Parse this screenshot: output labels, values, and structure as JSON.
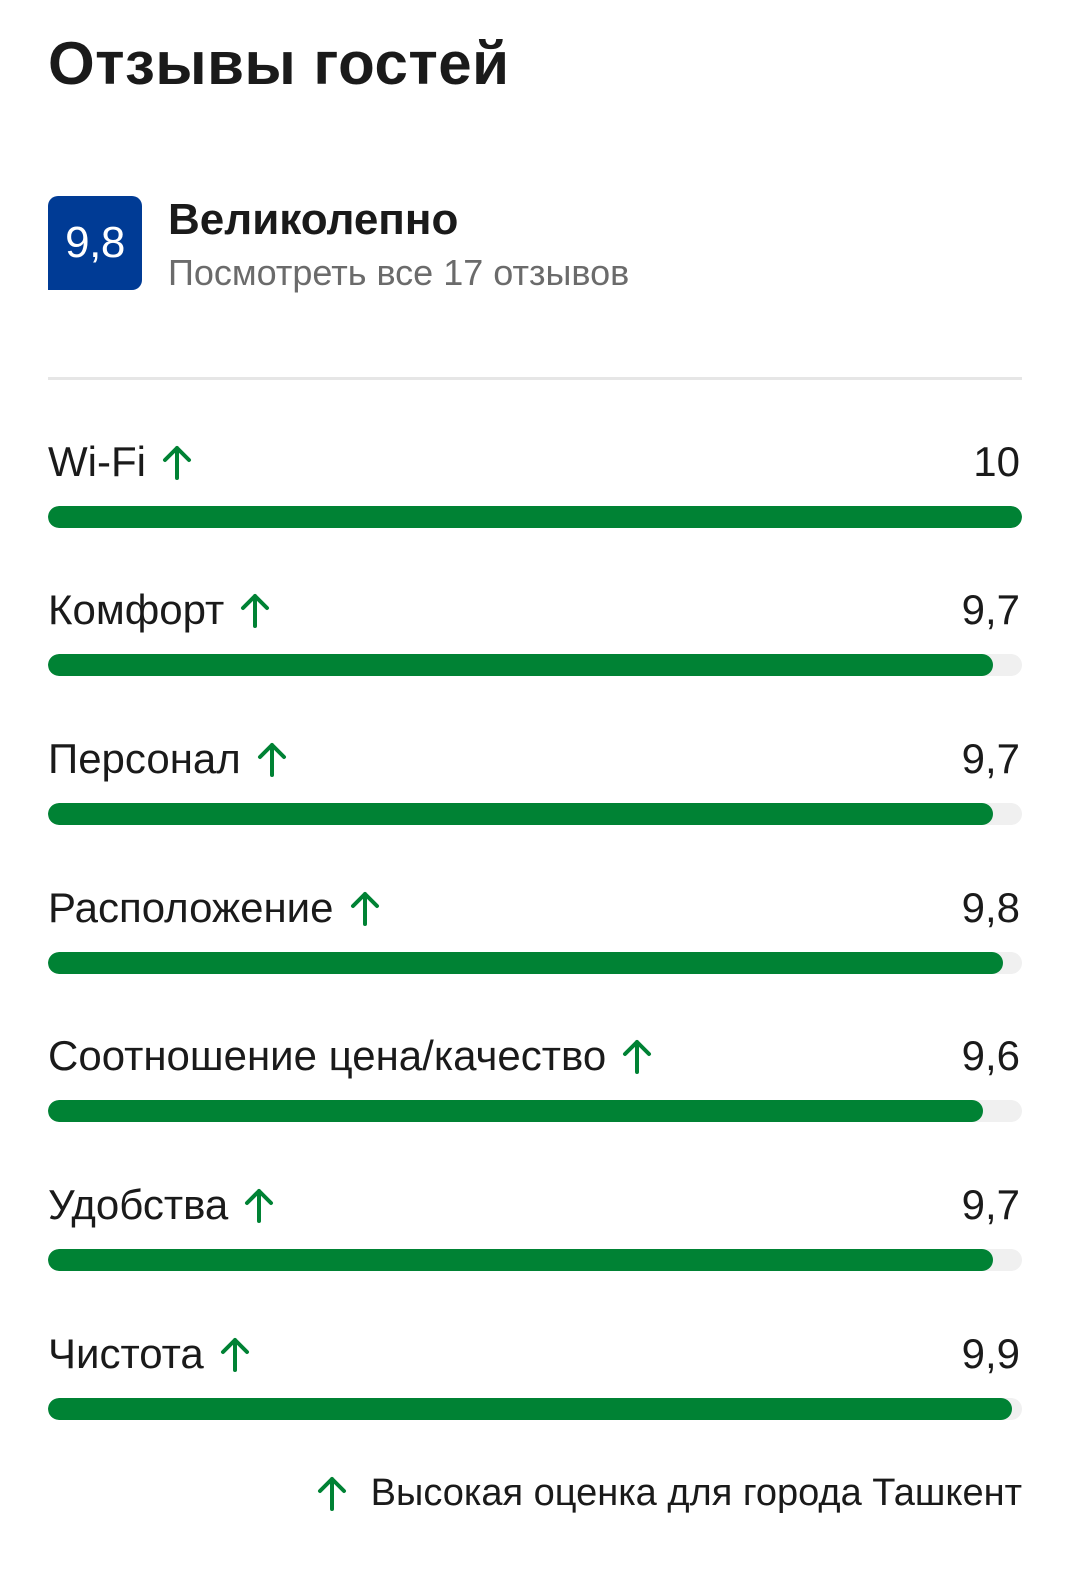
{
  "title": "Отзывы гостей",
  "summary": {
    "score": "9,8",
    "label": "Великолепно",
    "link": "Посмотреть все 17 отзывов"
  },
  "colors": {
    "badge": "#003b95",
    "bar_fill": "#008234",
    "bar_track": "#f0f0f0",
    "arrow": "#008234",
    "muted_text": "#6b6b6b"
  },
  "icons": {
    "trend": "arrow-up-icon"
  },
  "categories": [
    {
      "label": "Wi-Fi",
      "score": "10",
      "value": 10
    },
    {
      "label": "Комфорт",
      "score": "9,7",
      "value": 9.7
    },
    {
      "label": "Персонал",
      "score": "9,7",
      "value": 9.7
    },
    {
      "label": "Расположение",
      "score": "9,8",
      "value": 9.8
    },
    {
      "label": "Соотношение цена/качество",
      "score": "9,6",
      "value": 9.6
    },
    {
      "label": "Удобства",
      "score": "9,7",
      "value": 9.7
    },
    {
      "label": "Чистота",
      "score": "9,9",
      "value": 9.9
    }
  ],
  "scale_max": 10,
  "legend": "Высокая оценка для города Ташкент"
}
